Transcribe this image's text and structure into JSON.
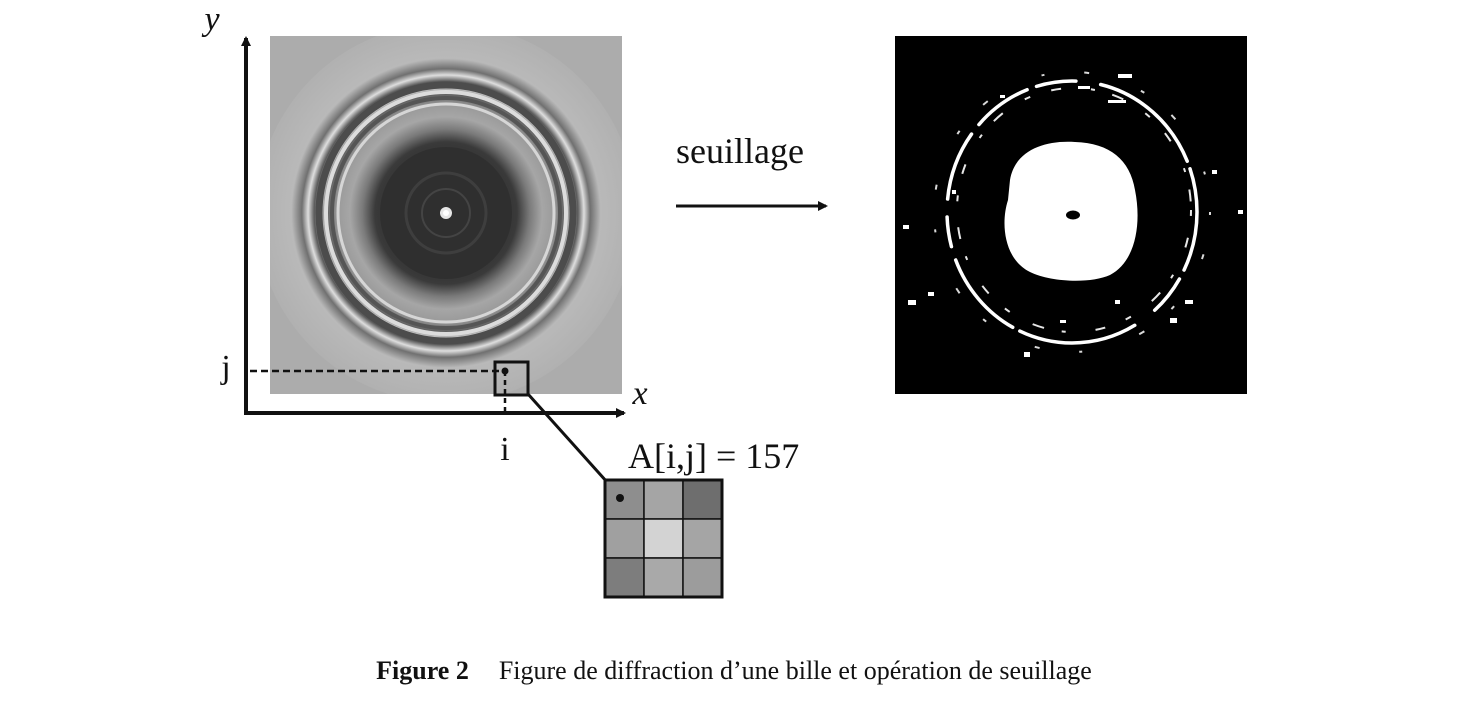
{
  "axes": {
    "x_label": "x",
    "y_label": "y"
  },
  "marks": {
    "i_label": "i",
    "j_label": "j"
  },
  "operation": {
    "label": "seuillage"
  },
  "pixel": {
    "equation": "A[i,j] = 157"
  },
  "zoom_grid": {
    "rows": 3,
    "cols": 3,
    "cells": [
      "#8e8e8e",
      "#a5a5a5",
      "#6e6e6e",
      "#a0a0a0",
      "#d3d3d3",
      "#a5a5a5",
      "#7d7d7d",
      "#a9a9a9",
      "#9c9c9c"
    ]
  },
  "caption": {
    "number": "Figure 2",
    "text": "Figure de diffraction d’une bille et opération de seuillage"
  }
}
